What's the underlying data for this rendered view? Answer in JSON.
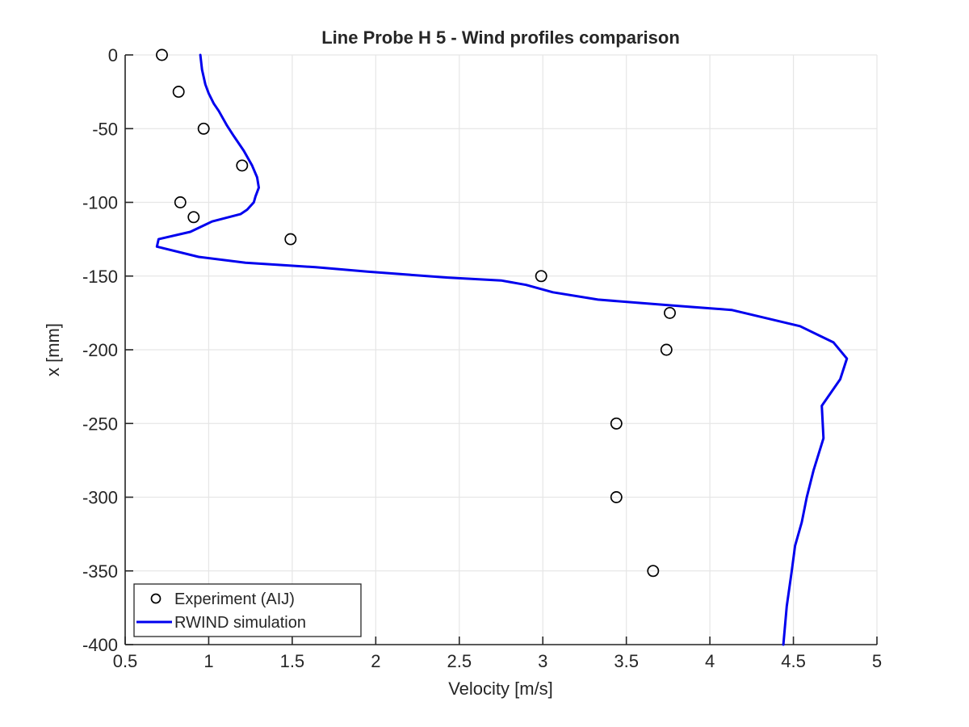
{
  "chart_data": {
    "type": "line",
    "title": "Line Probe H 5 - Wind profiles comparison",
    "xlabel": "Velocity [m/s]",
    "ylabel": "x [mm]",
    "xlim": [
      0.5,
      5
    ],
    "ylim": [
      -400,
      0
    ],
    "xticks": [
      0.5,
      1,
      1.5,
      2,
      2.5,
      3,
      3.5,
      4,
      4.5,
      5
    ],
    "yticks": [
      0,
      -50,
      -100,
      -150,
      -200,
      -250,
      -300,
      -350,
      -400
    ],
    "grid": true,
    "legend_position": "bottom-left",
    "style": {
      "background": "#FFFFFF",
      "grid_color": "#E6E6E6",
      "axis_color": "#262626",
      "text_color": "#262626"
    },
    "series": [
      {
        "name": "Experiment (AIJ)",
        "type": "scatter",
        "marker": "open-circle",
        "color": "#000000",
        "points": [
          [
            0.72,
            0
          ],
          [
            0.82,
            -25
          ],
          [
            0.97,
            -50
          ],
          [
            1.2,
            -75
          ],
          [
            0.83,
            -100
          ],
          [
            0.91,
            -110
          ],
          [
            1.49,
            -125
          ],
          [
            2.99,
            -150
          ],
          [
            3.76,
            -175
          ],
          [
            3.74,
            -200
          ],
          [
            3.44,
            -250
          ],
          [
            3.44,
            -300
          ],
          [
            3.66,
            -350
          ]
        ]
      },
      {
        "name": "RWIND simulation",
        "type": "line",
        "color": "#0000EE",
        "points": [
          [
            0.95,
            0
          ],
          [
            0.96,
            -10
          ],
          [
            0.98,
            -20
          ],
          [
            1.0,
            -26
          ],
          [
            1.03,
            -33
          ],
          [
            1.06,
            -38
          ],
          [
            1.11,
            -48
          ],
          [
            1.15,
            -55
          ],
          [
            1.21,
            -65
          ],
          [
            1.26,
            -75
          ],
          [
            1.29,
            -83
          ],
          [
            1.3,
            -90
          ],
          [
            1.28,
            -96
          ],
          [
            1.27,
            -100
          ],
          [
            1.23,
            -105
          ],
          [
            1.19,
            -108
          ],
          [
            1.02,
            -113
          ],
          [
            0.89,
            -120
          ],
          [
            0.7,
            -125
          ],
          [
            0.69,
            -130
          ],
          [
            0.94,
            -137
          ],
          [
            1.22,
            -141
          ],
          [
            1.64,
            -144
          ],
          [
            1.95,
            -147
          ],
          [
            2.43,
            -151
          ],
          [
            2.75,
            -153
          ],
          [
            2.9,
            -156
          ],
          [
            3.06,
            -161
          ],
          [
            3.33,
            -166
          ],
          [
            3.78,
            -170
          ],
          [
            4.13,
            -173
          ],
          [
            4.54,
            -184
          ],
          [
            4.74,
            -195
          ],
          [
            4.82,
            -206
          ],
          [
            4.78,
            -220
          ],
          [
            4.67,
            -238
          ],
          [
            4.68,
            -260
          ],
          [
            4.62,
            -282
          ],
          [
            4.58,
            -300
          ],
          [
            4.55,
            -317
          ],
          [
            4.51,
            -333
          ],
          [
            4.49,
            -350
          ],
          [
            4.46,
            -374
          ],
          [
            4.44,
            -400
          ]
        ]
      }
    ]
  }
}
